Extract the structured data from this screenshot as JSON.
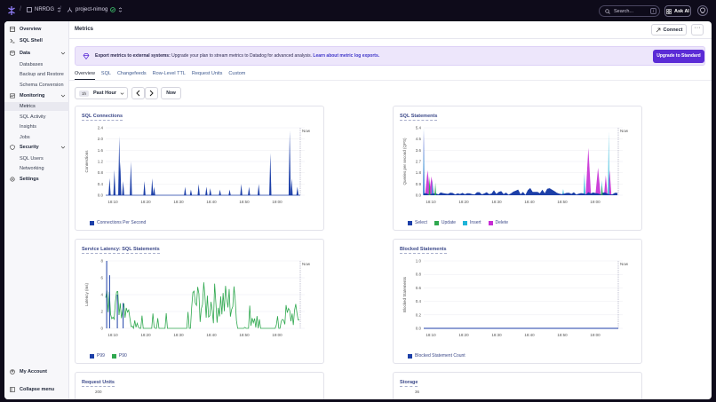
{
  "topbar": {
    "org": "NRRDG",
    "project": "project-nimog",
    "search_placeholder": "Search...",
    "search_shortcut": "/",
    "ask_ai": "Ask AI"
  },
  "sidebar": {
    "overview": "Overview",
    "sql_shell": "SQL Shell",
    "data": "Data",
    "databases": "Databases",
    "backup_restore": "Backup and Restore",
    "schema_conversion": "Schema Conversion",
    "monitoring": "Monitoring",
    "metrics": "Metrics",
    "sql_activity": "SQL Activity",
    "insights": "Insights",
    "jobs": "Jobs",
    "security": "Security",
    "sql_users": "SQL Users",
    "networking": "Networking",
    "settings": "Settings",
    "my_account": "My Account",
    "collapse_menu": "Collapse menu"
  },
  "header": {
    "title": "Metrics",
    "connect": "Connect",
    "more": "···"
  },
  "banner": {
    "bold": "Export metrics to external systems:",
    "text": " Upgrade your plan to stream metrics to Datadog for advanced analysis. ",
    "link": "Learn about metric log exports.",
    "button": "Upgrade to Standard"
  },
  "tabs": [
    "Overview",
    "SQL",
    "Changefeeds",
    "Row-Level TTL",
    "Request Units",
    "Custom"
  ],
  "timebar": {
    "pill": "1h",
    "range": "Past Hour",
    "now": "Now"
  },
  "colors": {
    "select": "#1c3fa8",
    "update": "#2fa84f",
    "insert": "#1fb4d8",
    "delete": "#c62cd4",
    "p99": "#1c3fa8",
    "p90": "#2fa84f"
  },
  "time_ticks": [
    "18:10",
    "18:20",
    "18:30",
    "18:40",
    "18:50",
    "19:00"
  ],
  "now_label": "Now",
  "chart_data": [
    {
      "type": "line",
      "title": "SQL Connections",
      "ylabel": "Connections",
      "yticks": [
        "2.4",
        "2.0",
        "1.6",
        "1.2",
        "0.8",
        "0.4",
        "0.0"
      ],
      "ylim": [
        0,
        2.4
      ],
      "series": [
        {
          "name": "Connections Per Second",
          "color": "#1c3fa8",
          "spikes": [
            [
              0.02,
              0.6
            ],
            [
              0.045,
              0.9
            ],
            [
              0.07,
              2.1
            ],
            [
              0.075,
              1.2
            ],
            [
              0.09,
              0.5
            ],
            [
              0.13,
              1.2
            ],
            [
              0.2,
              0.5
            ],
            [
              0.24,
              0.6
            ],
            [
              0.25,
              0.3
            ],
            [
              0.41,
              0.3
            ],
            [
              0.44,
              0.2
            ],
            [
              0.48,
              0.4
            ],
            [
              0.52,
              0.3
            ],
            [
              0.54,
              0.25
            ],
            [
              0.59,
              0.2
            ],
            [
              0.64,
              0.2
            ],
            [
              0.7,
              0.4
            ],
            [
              0.74,
              0.3
            ],
            [
              0.79,
              0.4
            ],
            [
              0.85,
              1.5
            ],
            [
              0.95,
              2.3
            ],
            [
              0.96,
              0.6
            ],
            [
              0.99,
              0.3
            ]
          ]
        }
      ]
    },
    {
      "type": "area",
      "title": "SQL Statements",
      "ylabel": "Queries per second (QPS)",
      "yticks": [
        "5.4",
        "4.5",
        "3.6",
        "2.7",
        "1.8",
        "0.9",
        "0.0"
      ],
      "ylim": [
        0,
        5.4
      ],
      "series": [
        {
          "name": "Select",
          "color": "#1c3fa8"
        },
        {
          "name": "Update",
          "color": "#2fa84f"
        },
        {
          "name": "Insert",
          "color": "#1fb4d8"
        },
        {
          "name": "Delete",
          "color": "#c62cd4"
        }
      ]
    },
    {
      "type": "line",
      "title": "Service Latency: SQL Statements",
      "ylabel": "Latency (ms)",
      "yticks": [
        "8",
        "6",
        "4",
        "2",
        "0"
      ],
      "ylim": [
        0,
        8
      ],
      "series": [
        {
          "name": "P99",
          "color": "#1c3fa8"
        },
        {
          "name": "P90",
          "color": "#2fa84f"
        }
      ]
    },
    {
      "type": "line",
      "title": "Blocked Statements",
      "ylabel": "Blocked Statements",
      "yticks": [
        "1.0",
        "0.8",
        "0.6",
        "0.4",
        "0.2",
        "0.0"
      ],
      "ylim": [
        0,
        1
      ],
      "series": [
        {
          "name": "Blocked Statement Count",
          "color": "#1c3fa8",
          "values": [
            0
          ]
        }
      ]
    },
    {
      "type": "line",
      "title": "Request Units",
      "yticks": [
        "200"
      ]
    },
    {
      "type": "line",
      "title": "Storage",
      "yticks": [
        "36"
      ]
    }
  ]
}
